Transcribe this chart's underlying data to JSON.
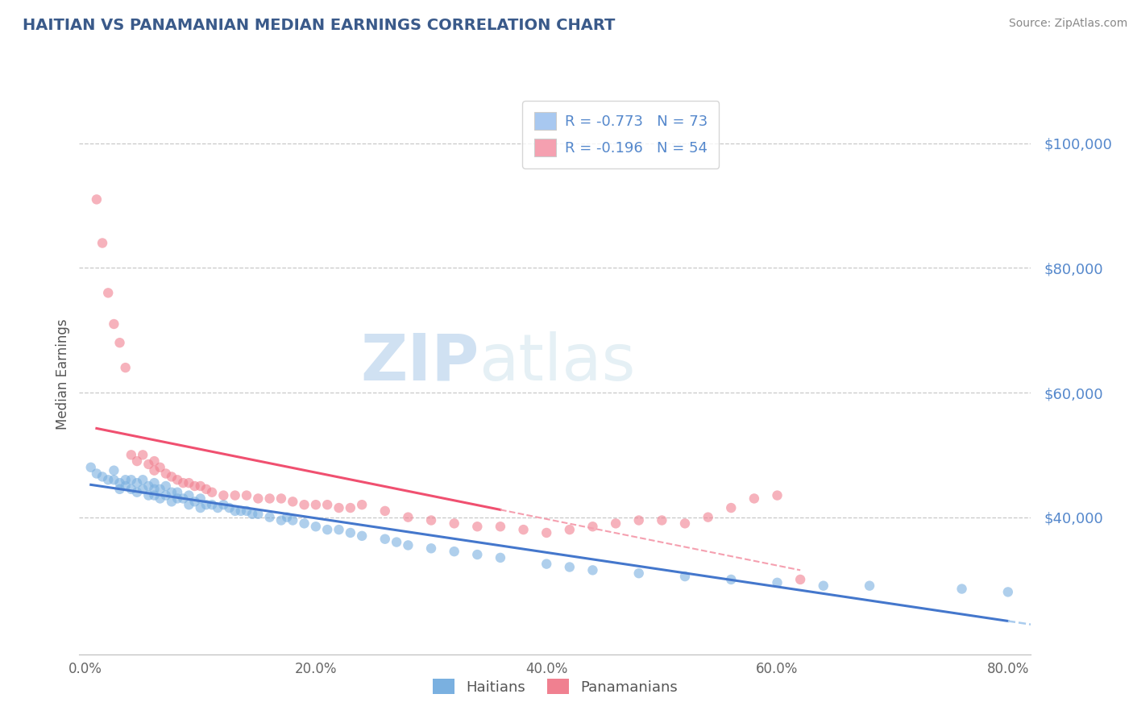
{
  "title": "HAITIAN VS PANAMANIAN MEDIAN EARNINGS CORRELATION CHART",
  "source": "Source: ZipAtlas.com",
  "xlabel_bottom": [
    "0.0%",
    "20.0%",
    "40.0%",
    "60.0%",
    "80.0%"
  ],
  "x_ticks": [
    0.0,
    0.2,
    0.4,
    0.6,
    0.8
  ],
  "ylabel": "Median Earnings",
  "y_ticks": [
    40000,
    60000,
    80000,
    100000
  ],
  "y_tick_labels": [
    "$40,000",
    "$60,000",
    "$80,000",
    "$100,000"
  ],
  "xlim": [
    -0.005,
    0.82
  ],
  "ylim": [
    18000,
    108000
  ],
  "legend_entries": [
    {
      "label": "R = -0.773   N = 73",
      "color": "#a8c8f0"
    },
    {
      "label": "R = -0.196   N = 54",
      "color": "#f5a0b0"
    }
  ],
  "legend_labels_bottom": [
    "Haitians",
    "Panamanians"
  ],
  "watermark_zip": "ZIP",
  "watermark_atlas": "atlas",
  "title_color": "#3a5a8a",
  "axis_color": "#5588cc",
  "grid_color": "#c8c8c8",
  "blue_scatter_color": "#7ab0e0",
  "pink_scatter_color": "#f08090",
  "blue_line_color": "#4477cc",
  "pink_line_color": "#f05070",
  "blue_dashed_color": "#aaccee",
  "haitian_x": [
    0.005,
    0.01,
    0.015,
    0.02,
    0.025,
    0.025,
    0.03,
    0.03,
    0.035,
    0.035,
    0.04,
    0.04,
    0.045,
    0.045,
    0.05,
    0.05,
    0.055,
    0.055,
    0.06,
    0.06,
    0.06,
    0.065,
    0.065,
    0.07,
    0.07,
    0.075,
    0.075,
    0.08,
    0.08,
    0.085,
    0.09,
    0.09,
    0.095,
    0.1,
    0.1,
    0.105,
    0.11,
    0.115,
    0.12,
    0.125,
    0.13,
    0.135,
    0.14,
    0.145,
    0.15,
    0.16,
    0.17,
    0.175,
    0.18,
    0.19,
    0.2,
    0.21,
    0.22,
    0.23,
    0.24,
    0.26,
    0.27,
    0.28,
    0.3,
    0.32,
    0.34,
    0.36,
    0.4,
    0.42,
    0.44,
    0.48,
    0.52,
    0.56,
    0.6,
    0.64,
    0.68,
    0.76,
    0.8
  ],
  "haitian_y": [
    48000,
    47000,
    46500,
    46000,
    47500,
    46000,
    45500,
    44500,
    46000,
    45000,
    46000,
    44500,
    45500,
    44000,
    46000,
    44500,
    45000,
    43500,
    45500,
    44500,
    43500,
    44500,
    43000,
    45000,
    43500,
    44000,
    42500,
    44000,
    43000,
    43000,
    43500,
    42000,
    42500,
    43000,
    41500,
    42000,
    42000,
    41500,
    42000,
    41500,
    41000,
    41000,
    41000,
    40500,
    40500,
    40000,
    39500,
    40000,
    39500,
    39000,
    38500,
    38000,
    38000,
    37500,
    37000,
    36500,
    36000,
    35500,
    35000,
    34500,
    34000,
    33500,
    32500,
    32000,
    31500,
    31000,
    30500,
    30000,
    29500,
    29000,
    29000,
    28500,
    28000
  ],
  "panamanian_x": [
    0.01,
    0.015,
    0.02,
    0.025,
    0.03,
    0.035,
    0.04,
    0.045,
    0.05,
    0.055,
    0.06,
    0.06,
    0.065,
    0.07,
    0.075,
    0.08,
    0.085,
    0.09,
    0.095,
    0.1,
    0.105,
    0.11,
    0.12,
    0.13,
    0.14,
    0.15,
    0.16,
    0.17,
    0.18,
    0.19,
    0.2,
    0.21,
    0.22,
    0.23,
    0.24,
    0.26,
    0.28,
    0.3,
    0.32,
    0.34,
    0.36,
    0.38,
    0.4,
    0.42,
    0.44,
    0.46,
    0.48,
    0.5,
    0.52,
    0.54,
    0.56,
    0.58,
    0.6,
    0.62
  ],
  "panamanian_y": [
    91000,
    84000,
    76000,
    71000,
    68000,
    64000,
    50000,
    49000,
    50000,
    48500,
    49000,
    47500,
    48000,
    47000,
    46500,
    46000,
    45500,
    45500,
    45000,
    45000,
    44500,
    44000,
    43500,
    43500,
    43500,
    43000,
    43000,
    43000,
    42500,
    42000,
    42000,
    42000,
    41500,
    41500,
    42000,
    41000,
    40000,
    39500,
    39000,
    38500,
    38500,
    38000,
    37500,
    38000,
    38500,
    39000,
    39500,
    39500,
    39000,
    40000,
    41500,
    43000,
    43500,
    30000
  ]
}
